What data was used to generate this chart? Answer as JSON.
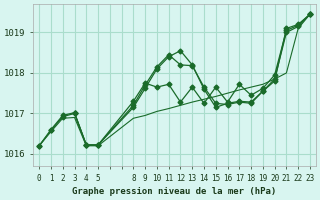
{
  "bg_color": "#d8f5f0",
  "grid_color": "#aaddcc",
  "line_color": "#1a6b2a",
  "title": "Graphe pression niveau de la mer (hPa)",
  "ylabel_ticks": [
    1016,
    1017,
    1018,
    1019
  ],
  "xtick_labels": [
    "0",
    "1",
    "2",
    "3",
    "4",
    "5",
    "",
    "",
    "8",
    "9",
    "10",
    "11",
    "12",
    "13",
    "14",
    "15",
    "16",
    "17",
    "18",
    "19",
    "20",
    "21",
    "22",
    "23"
  ],
  "lines": [
    {
      "x": [
        0,
        1,
        2,
        3,
        4,
        5,
        8,
        9,
        10,
        11,
        12,
        13,
        14,
        15,
        16,
        17,
        18,
        19,
        20,
        21,
        22,
        23
      ],
      "y": [
        1016.2,
        1016.55,
        1016.88,
        1016.9,
        1016.2,
        1016.2,
        1016.88,
        1016.95,
        1017.05,
        1017.12,
        1017.2,
        1017.28,
        1017.35,
        1017.42,
        1017.5,
        1017.58,
        1017.65,
        1017.72,
        1017.85,
        1018.0,
        1019.1,
        1019.45
      ],
      "markers": false
    },
    {
      "x": [
        0,
        1,
        2,
        3,
        4,
        5,
        8,
        9,
        10,
        11,
        12,
        13,
        14,
        15,
        16,
        17,
        18,
        19,
        20,
        21,
        22,
        23
      ],
      "y": [
        1016.2,
        1016.58,
        1016.92,
        1017.0,
        1016.22,
        1016.22,
        1017.15,
        1017.62,
        1018.1,
        1018.4,
        1018.55,
        1018.2,
        1017.6,
        1017.15,
        1017.25,
        1017.3,
        1017.28,
        1017.55,
        1017.8,
        1019.1,
        1019.2,
        1019.45
      ],
      "markers": true
    },
    {
      "x": [
        0,
        1,
        2,
        3,
        4,
        5,
        8,
        9,
        10,
        11,
        12,
        13,
        14,
        15,
        16,
        17,
        18,
        19,
        20,
        21,
        22,
        23
      ],
      "y": [
        1016.2,
        1016.6,
        1016.95,
        1017.02,
        1016.22,
        1016.22,
        1017.2,
        1017.7,
        1018.15,
        1018.45,
        1018.2,
        1018.18,
        1017.65,
        1017.25,
        1017.22,
        1017.28,
        1017.25,
        1017.55,
        1017.85,
        1019.0,
        1019.15,
        1019.45
      ],
      "markers": true
    },
    {
      "x": [
        3,
        4,
        5,
        8,
        9,
        10,
        11,
        12,
        13,
        14,
        15,
        16,
        17,
        18,
        19,
        20,
        21,
        22,
        23
      ],
      "y": [
        1017.0,
        1016.22,
        1016.22,
        1017.3,
        1017.75,
        1017.65,
        1017.72,
        1017.28,
        1017.65,
        1017.25,
        1017.65,
        1017.28,
        1017.72,
        1017.45,
        1017.62,
        1017.95,
        1019.05,
        1019.18,
        1019.45
      ],
      "markers": true
    }
  ]
}
